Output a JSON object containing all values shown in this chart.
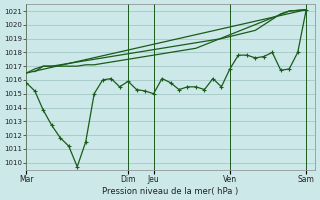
{
  "background_color": "#cce8e8",
  "grid_color": "#aacccc",
  "line_color": "#1a5c1a",
  "marker_color": "#1a5c1a",
  "xlabel": "Pression niveau de la mer( hPa )",
  "ylim": [
    1009.5,
    1021.5
  ],
  "yticks": [
    1010,
    1011,
    1012,
    1013,
    1014,
    1015,
    1016,
    1017,
    1018,
    1019,
    1020,
    1021
  ],
  "xtick_labels": [
    "Mar",
    "Dim",
    "Jeu",
    "Ven",
    "Sam"
  ],
  "xtick_positions": [
    0,
    24,
    30,
    48,
    66
  ],
  "xlim": [
    0,
    68
  ],
  "line_straight": {
    "x": [
      0,
      66
    ],
    "y": [
      1016.5,
      1021.1
    ]
  },
  "line_upper": [
    1016.6,
    1017.0,
    1017.0,
    1017.1,
    1017.2,
    1017.3,
    1017.5,
    1017.6,
    1017.8,
    1018.0,
    1018.2,
    1018.4,
    1018.6,
    1018.8,
    1019.0,
    1019.3,
    1019.6,
    1020.0,
    1020.4,
    1020.8,
    1021.0,
    1021.1
  ],
  "line_upper_x": [
    2,
    4,
    6,
    8,
    10,
    12,
    16,
    18,
    22,
    26,
    30,
    34,
    38,
    42,
    46,
    50,
    54,
    56,
    58,
    60,
    62,
    66
  ],
  "line_mid": [
    1016.5,
    1016.8,
    1017.0,
    1017.0,
    1017.0,
    1017.0,
    1017.0,
    1017.1,
    1017.1,
    1017.2,
    1017.3,
    1017.4,
    1017.5,
    1017.6,
    1017.8,
    1017.9,
    1018.0,
    1018.1,
    1018.2,
    1018.3,
    1021.0,
    1021.1
  ],
  "line_mid_x": [
    0,
    2,
    4,
    6,
    8,
    10,
    12,
    14,
    16,
    18,
    20,
    22,
    24,
    26,
    30,
    32,
    34,
    36,
    38,
    40,
    62,
    66
  ],
  "line_zigzag_x": [
    0,
    2,
    4,
    6,
    8,
    10,
    12,
    14,
    16,
    18,
    20,
    22,
    24,
    26,
    28,
    30,
    32,
    34,
    36,
    38,
    40,
    42,
    44,
    46,
    48,
    50,
    52,
    54,
    56,
    58,
    60,
    62,
    64,
    66
  ],
  "line_zigzag": [
    1015.8,
    1015.2,
    1013.8,
    1012.7,
    1011.8,
    1011.2,
    1009.7,
    1011.5,
    1015.0,
    1016.0,
    1016.1,
    1015.5,
    1015.9,
    1015.3,
    1015.2,
    1015.0,
    1016.1,
    1015.8,
    1015.3,
    1015.5,
    1015.5,
    1015.3,
    1016.1,
    1015.5,
    1016.8,
    1017.8,
    1017.8,
    1017.6,
    1017.7,
    1018.0,
    1016.7,
    1016.8,
    1018.0,
    1021.1
  ],
  "vlines": [
    0,
    24,
    30,
    48,
    66
  ]
}
